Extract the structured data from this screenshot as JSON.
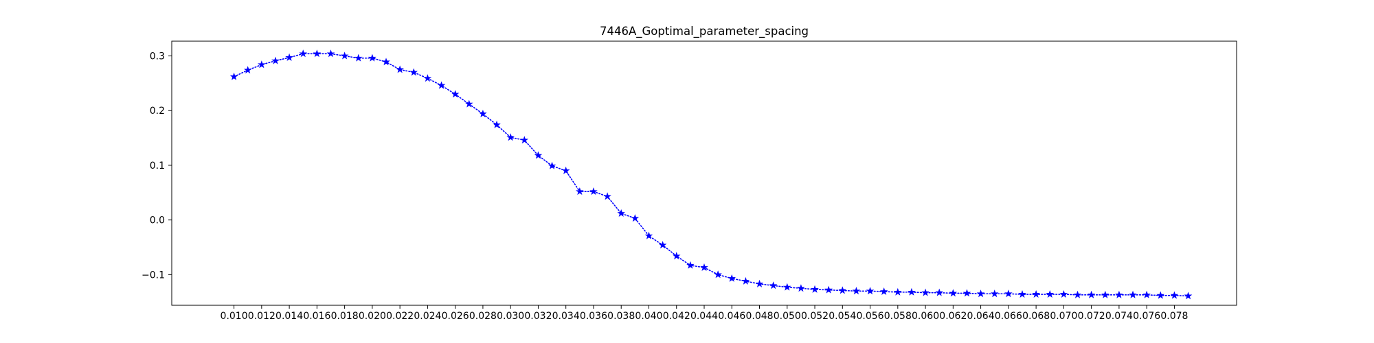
{
  "chart_data": {
    "type": "line",
    "title": "7446A_Goptimal_parameter_spacing",
    "xlabel": "",
    "ylabel": "",
    "grid": false,
    "legend": false,
    "xlim": [
      0.0055,
      0.0825
    ],
    "ylim": [
      -0.156,
      0.327
    ],
    "x_ticks": [
      0.01,
      0.012,
      0.014,
      0.016,
      0.018,
      0.02,
      0.022,
      0.024,
      0.026,
      0.028,
      0.03,
      0.032,
      0.034,
      0.036,
      0.038,
      0.04,
      0.042,
      0.044,
      0.046,
      0.048,
      0.05,
      0.052,
      0.054,
      0.056,
      0.058,
      0.06,
      0.062,
      0.064,
      0.066,
      0.068,
      0.07,
      0.072,
      0.074,
      0.076,
      0.078
    ],
    "x_tick_labels": [
      "0.010",
      "0.012",
      "0.014",
      "0.016",
      "0.018",
      "0.020",
      "0.022",
      "0.024",
      "0.026",
      "0.028",
      "0.030",
      "0.032",
      "0.034",
      "0.036",
      "0.038",
      "0.040",
      "0.042",
      "0.044",
      "0.046",
      "0.048",
      "0.050",
      "0.052",
      "0.054",
      "0.056",
      "0.058",
      "0.060",
      "0.062",
      "0.064",
      "0.066",
      "0.068",
      "0.070",
      "0.072",
      "0.074",
      "0.076",
      "0.078"
    ],
    "y_ticks": [
      0.3,
      0.2,
      0.1,
      0.0,
      -0.1
    ],
    "y_tick_labels": [
      "0.3",
      "0.2",
      "0.1",
      "0.0",
      "−0.1"
    ],
    "series": [
      {
        "color": "#0000ff",
        "line_style": "dotted",
        "marker": "star",
        "x": [
          0.01,
          0.011,
          0.012,
          0.013,
          0.014,
          0.015,
          0.016,
          0.017,
          0.018,
          0.019,
          0.02,
          0.021,
          0.022,
          0.023,
          0.024,
          0.025,
          0.026,
          0.027,
          0.028,
          0.029,
          0.03,
          0.031,
          0.032,
          0.033,
          0.034,
          0.035,
          0.036,
          0.037,
          0.038,
          0.039,
          0.04,
          0.041,
          0.042,
          0.043,
          0.044,
          0.045,
          0.046,
          0.047,
          0.048,
          0.049,
          0.05,
          0.051,
          0.052,
          0.053,
          0.054,
          0.055,
          0.056,
          0.057,
          0.058,
          0.059,
          0.06,
          0.061,
          0.062,
          0.063,
          0.064,
          0.065,
          0.066,
          0.067,
          0.068,
          0.069,
          0.07,
          0.071,
          0.072,
          0.073,
          0.074,
          0.075,
          0.076,
          0.077,
          0.078,
          0.079
        ],
        "y": [
          0.262,
          0.274,
          0.284,
          0.291,
          0.297,
          0.304,
          0.304,
          0.304,
          0.3,
          0.296,
          0.296,
          0.289,
          0.275,
          0.27,
          0.259,
          0.246,
          0.23,
          0.212,
          0.194,
          0.174,
          0.151,
          0.146,
          0.118,
          0.099,
          0.09,
          0.052,
          0.052,
          0.043,
          0.012,
          0.003,
          -0.029,
          -0.046,
          -0.066,
          -0.083,
          -0.087,
          -0.1,
          -0.107,
          -0.112,
          -0.117,
          -0.12,
          -0.123,
          -0.125,
          -0.127,
          -0.128,
          -0.129,
          -0.13,
          -0.13,
          -0.131,
          -0.132,
          -0.132,
          -0.133,
          -0.133,
          -0.134,
          -0.134,
          -0.135,
          -0.135,
          -0.135,
          -0.136,
          -0.136,
          -0.136,
          -0.136,
          -0.137,
          -0.137,
          -0.137,
          -0.137,
          -0.137,
          -0.137,
          -0.138,
          -0.138,
          -0.139
        ]
      }
    ]
  }
}
